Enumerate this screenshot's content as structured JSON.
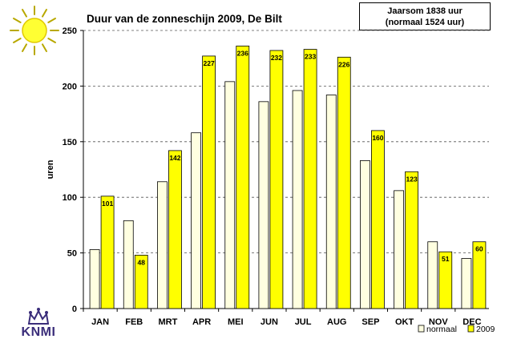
{
  "summary": {
    "line1": "Jaarsom 1838  uur",
    "line2": "(normaal 1524 uur)"
  },
  "logo": {
    "text": "KNMI"
  },
  "colors": {
    "normaal": "#ffffe0",
    "year2009": "#ffff00",
    "sun": "#ffff00"
  },
  "chart_data": {
    "type": "bar",
    "title": "Duur van de zonneschijn 2009, De Bilt",
    "xlabel": "",
    "ylabel": "uren",
    "ylim": [
      0,
      250
    ],
    "yticks": [
      0,
      50,
      100,
      150,
      200,
      250
    ],
    "grid": true,
    "legend_position": "bottom-right",
    "categories": [
      "JAN",
      "FEB",
      "MRT",
      "APR",
      "MEI",
      "JUN",
      "JUL",
      "AUG",
      "SEP",
      "OKT",
      "NOV",
      "DEC"
    ],
    "series": [
      {
        "name": "normaal",
        "values": [
          53,
          79,
          114,
          158,
          204,
          186,
          196,
          192,
          133,
          106,
          60,
          45
        ]
      },
      {
        "name": "2009",
        "values": [
          101,
          48,
          142,
          227,
          236,
          232,
          233,
          226,
          160,
          123,
          51,
          60
        ],
        "data_labels": [
          "101",
          "48",
          "142",
          "227",
          "236",
          "232",
          "233",
          "226",
          "160",
          "123",
          "51",
          "60"
        ]
      }
    ]
  }
}
